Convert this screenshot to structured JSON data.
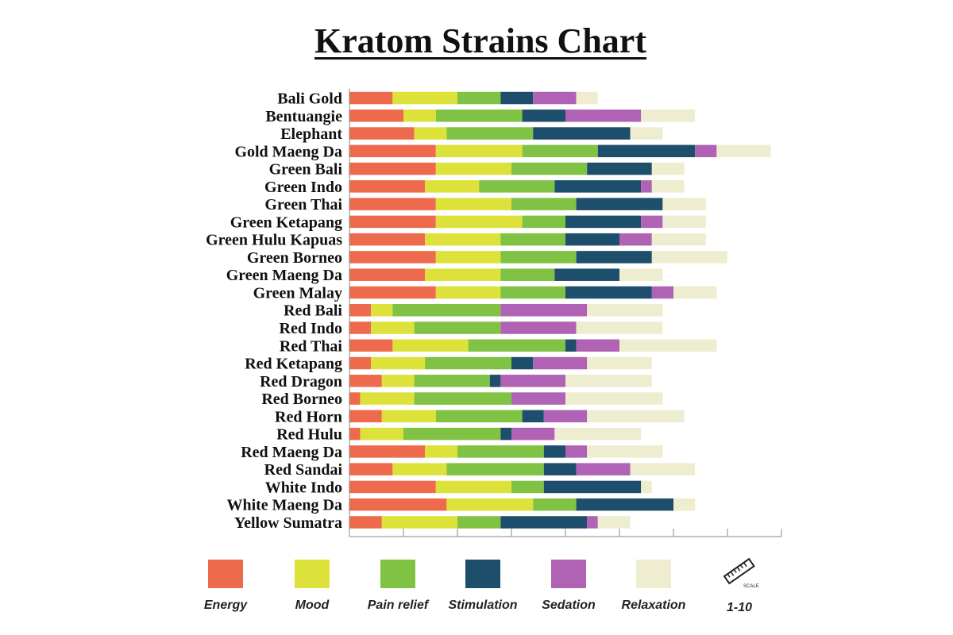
{
  "chart_data": {
    "type": "bar",
    "stacked": true,
    "orientation": "horizontal",
    "title": "Kratom Strains Chart",
    "categories": [
      "Bali Gold",
      "Bentuangie",
      "Elephant",
      "Gold Maeng Da",
      "Green Bali",
      "Green Indo",
      "Green Thai",
      "Green Ketapang",
      "Green Hulu Kapuas",
      "Green Borneo",
      "Green Maeng Da",
      "Green Malay",
      "Red Bali",
      "Red Indo",
      "Red Thai",
      "Red Ketapang",
      "Red Dragon",
      "Red Borneo",
      "Red Horn",
      "Red Hulu",
      "Red Maeng Da",
      "Red Sandai",
      "White Indo",
      "White Maeng Da",
      "Yellow Sumatra"
    ],
    "series": [
      {
        "name": "Energy",
        "color": "#ee6a4d",
        "values": [
          4,
          5,
          6,
          8,
          8,
          7,
          8,
          8,
          7,
          8,
          7,
          8,
          2,
          2,
          4,
          2,
          3,
          1,
          3,
          1,
          7,
          4,
          8,
          9,
          3
        ]
      },
      {
        "name": "Mood",
        "color": "#dde23a",
        "values": [
          6,
          3,
          3,
          8,
          7,
          5,
          7,
          8,
          7,
          6,
          7,
          6,
          2,
          4,
          7,
          5,
          3,
          5,
          5,
          4,
          3,
          5,
          7,
          8,
          7
        ]
      },
      {
        "name": "Pain relief",
        "color": "#80c243",
        "values": [
          4,
          8,
          8,
          7,
          7,
          7,
          6,
          4,
          6,
          7,
          5,
          6,
          10,
          8,
          9,
          8,
          7,
          9,
          8,
          9,
          8,
          9,
          3,
          4,
          4
        ]
      },
      {
        "name": "Stimulation",
        "color": "#1d4e6b",
        "values": [
          3,
          4,
          9,
          9,
          6,
          8,
          8,
          7,
          5,
          7,
          6,
          8,
          0,
          0,
          1,
          2,
          1,
          0,
          2,
          1,
          2,
          3,
          9,
          9,
          8
        ]
      },
      {
        "name": "Sedation",
        "color": "#b063b4",
        "values": [
          4,
          7,
          0,
          2,
          0,
          1,
          0,
          2,
          3,
          0,
          0,
          2,
          8,
          7,
          4,
          5,
          6,
          5,
          4,
          4,
          2,
          5,
          0,
          0,
          1
        ]
      },
      {
        "name": "Relaxation",
        "color": "#efedcf",
        "values": [
          2,
          5,
          3,
          5,
          3,
          3,
          4,
          4,
          5,
          7,
          4,
          4,
          7,
          8,
          9,
          6,
          8,
          9,
          9,
          8,
          7,
          6,
          1,
          2,
          3
        ]
      }
    ],
    "xlim": [
      0,
      40
    ],
    "grid": false,
    "legend_position": "bottom",
    "legend_extra": {
      "label": "1-10",
      "icon": "ruler-icon",
      "icon_text": "SCALE"
    }
  }
}
